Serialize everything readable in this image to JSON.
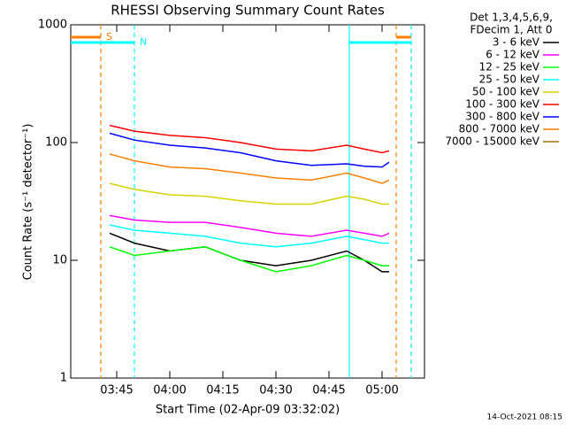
{
  "chart_data": {
    "type": "line",
    "title": "RHESSI Observing Summary Count Rates",
    "xlabel": "Start Time (02-Apr-09 03:32:02)",
    "ylabel": "Count Rate (s⁻¹ detector⁻¹)",
    "legend_header": [
      "Det 1,3,4,5,6,9,",
      "FDecim 1, Att 0"
    ],
    "footer": "14-Oct-2021 08:15",
    "log_y": true,
    "xlim": [
      212,
      312
    ],
    "xticks": [
      {
        "value": 225,
        "label": "03:45"
      },
      {
        "value": 240,
        "label": "04:00"
      },
      {
        "value": 255,
        "label": "04:15"
      },
      {
        "value": 270,
        "label": "04:30"
      },
      {
        "value": 285,
        "label": "04:45"
      },
      {
        "value": 300,
        "label": "05:00"
      }
    ],
    "ylim": [
      1,
      1000
    ],
    "yticks": [
      1,
      10,
      100,
      1000
    ],
    "x": [
      223,
      230,
      240,
      250,
      260,
      270,
      280,
      290,
      295,
      300,
      302
    ],
    "series": [
      {
        "name": "3 - 6 keV",
        "color": "#000000",
        "values": [
          17,
          14,
          12,
          13,
          10,
          9,
          10,
          12,
          10,
          8,
          8
        ]
      },
      {
        "name": "6 - 12 keV",
        "color": "#ff00ff",
        "values": [
          24,
          22,
          21,
          21,
          19,
          17,
          16,
          18,
          17,
          16,
          17
        ]
      },
      {
        "name": "12 - 25 keV",
        "color": "#00ff00",
        "values": [
          13,
          11,
          12,
          13,
          10,
          8,
          9,
          11,
          10,
          9,
          9
        ]
      },
      {
        "name": "25 - 50 keV",
        "color": "#00ffff",
        "values": [
          20,
          18,
          17,
          16,
          14,
          13,
          14,
          16,
          15,
          14,
          14
        ]
      },
      {
        "name": "50 - 100 keV",
        "color": "#d4d400",
        "values": [
          45,
          40,
          36,
          35,
          32,
          30,
          30,
          35,
          33,
          30,
          30
        ]
      },
      {
        "name": "100 - 300 keV",
        "color": "#ff0000",
        "values": [
          140,
          125,
          115,
          110,
          100,
          88,
          85,
          95,
          88,
          82,
          85
        ]
      },
      {
        "name": "300 - 800 keV",
        "color": "#0000ff",
        "values": [
          120,
          105,
          95,
          90,
          82,
          70,
          64,
          66,
          63,
          62,
          68
        ]
      },
      {
        "name": "800 - 7000 keV",
        "color": "#ff8000",
        "values": [
          80,
          70,
          62,
          60,
          55,
          50,
          48,
          55,
          50,
          45,
          48
        ]
      },
      {
        "name": "7000 - 15000 keV",
        "color": "#a07000",
        "values": [
          null,
          null,
          null,
          null,
          null,
          null,
          null,
          null,
          null,
          null,
          null
        ]
      }
    ],
    "flags": [
      {
        "label": "S",
        "color": "#ff8000",
        "intervals": [
          [
            212,
            220.5
          ],
          [
            304,
            308.25
          ]
        ]
      },
      {
        "label": "N",
        "color": "#00ffff",
        "intervals": [
          [
            212,
            230
          ],
          [
            290.75,
            308.25
          ]
        ]
      }
    ]
  }
}
